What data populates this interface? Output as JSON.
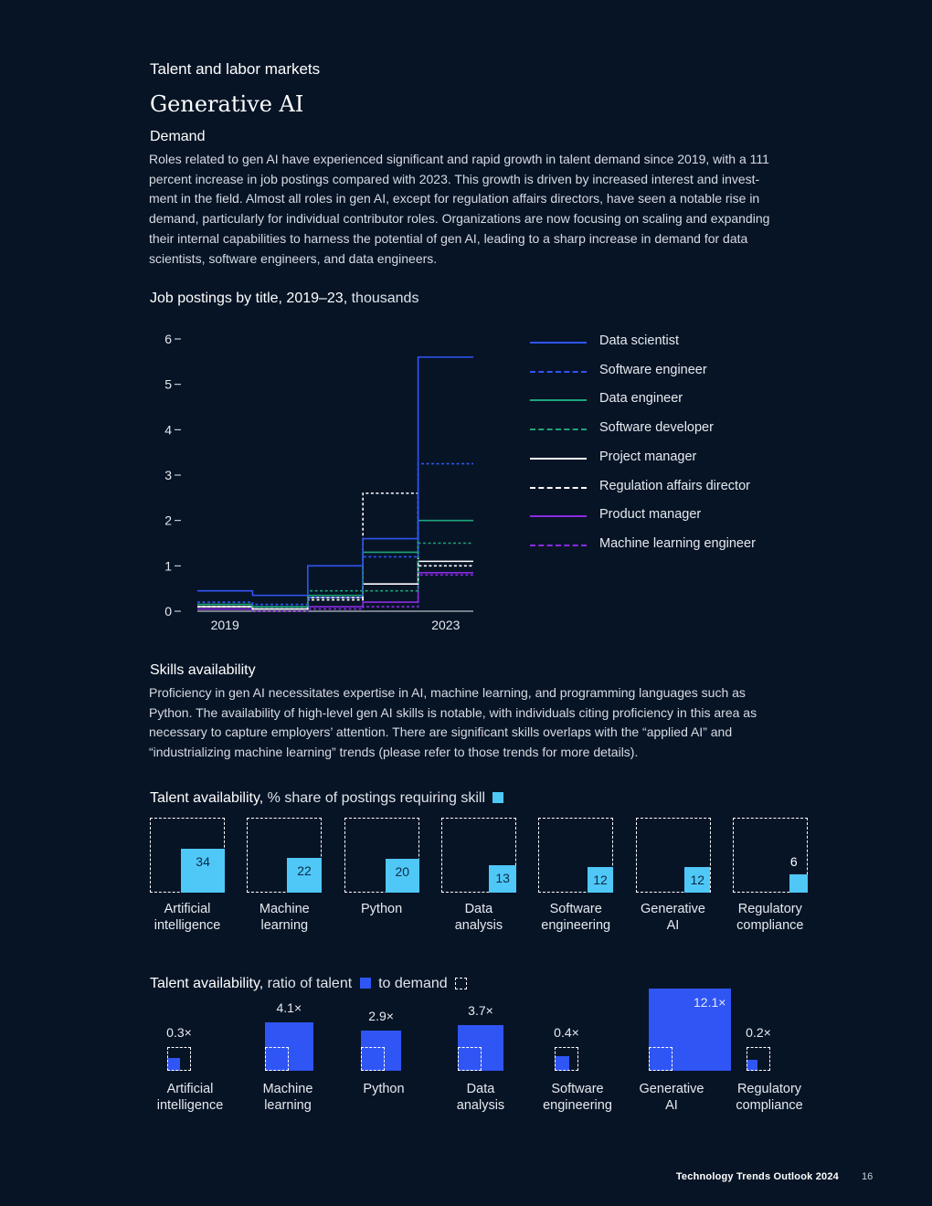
{
  "section": "Talent and labor markets",
  "title": "Generative AI",
  "demand": {
    "heading": "Demand",
    "lines": [
      "Roles related to gen AI have experienced significant and rapid growth in talent demand since 2019, with a 111",
      "percent increase in job postings compared with 2023. This growth is driven by increased interest and invest-",
      "ment in the field. Almost all roles in gen AI, except for regulation affairs directors, have seen a notable rise in",
      "demand, particularly for individual contributor roles. Organizations are now focusing on scaling and expanding",
      "their internal capabilities to harness the potential of gen AI, leading to a sharp increase in demand for data",
      "scientists, software engineers, and data engineers."
    ]
  },
  "skills": {
    "heading": "Skills availability",
    "lines": [
      "Proficiency in gen AI necessitates expertise in AI, machine learning, and programming languages such as",
      "Python. The availability of high-level gen AI skills is notable, with individuals citing proficiency in this area as",
      "necessary to capture employers’ attention. There are significant skills overlaps with the “applied AI” and",
      "“industrializing machine learning” trends (please refer to those trends for more details)."
    ]
  },
  "colors": {
    "background": "#071426",
    "blue": "#2f55f5",
    "cyan": "#4fc8f8",
    "green": "#1ea57a",
    "purple": "#8a2be2",
    "white": "#ffffff"
  },
  "chart_data": [
    {
      "type": "line",
      "title_bold": "Job postings by title, 2019–23,",
      "title_unit": "thousands",
      "x": [
        2019,
        2020,
        2021,
        2022,
        2023
      ],
      "x_tick_labels": [
        "2019",
        "2023"
      ],
      "y_ticks": [
        "0",
        "1",
        "2",
        "3",
        "4",
        "5",
        "6"
      ],
      "ylim": [
        0,
        6
      ],
      "step": true,
      "series": [
        {
          "name": "Data scientist",
          "values": [
            0.45,
            0.35,
            1.0,
            1.6,
            5.6
          ],
          "color": "#2f55f5",
          "dashed": false
        },
        {
          "name": "Software engineer",
          "values": [
            0.2,
            0.15,
            0.3,
            1.2,
            3.25
          ],
          "color": "#2f55f5",
          "dashed": true
        },
        {
          "name": "Data engineer",
          "values": [
            0.15,
            0.1,
            0.35,
            1.3,
            2.0
          ],
          "color": "#1ea57a",
          "dashed": false
        },
        {
          "name": "Software developer",
          "values": [
            0.15,
            0.1,
            0.45,
            0.45,
            1.5
          ],
          "color": "#1ea57a",
          "dashed": true
        },
        {
          "name": "Project manager",
          "values": [
            0.1,
            0.05,
            0.3,
            0.6,
            1.1
          ],
          "color": "#ffffff",
          "dashed": false
        },
        {
          "name": "Regulation affairs director",
          "values": [
            0.1,
            0.05,
            0.25,
            2.6,
            1.0
          ],
          "color": "#ffffff",
          "dashed": true
        },
        {
          "name": "Product manager",
          "values": [
            0.05,
            0.05,
            0.1,
            0.2,
            0.85
          ],
          "color": "#8a2be2",
          "dashed": false
        },
        {
          "name": "Machine learning engineer",
          "values": [
            0.05,
            0.0,
            0.05,
            0.1,
            0.8
          ],
          "color": "#8a2be2",
          "dashed": true
        }
      ]
    },
    {
      "type": "bar",
      "title_bold": "Talent availability,",
      "title_unit": "% share of postings requiring skill",
      "categories": [
        "Artificial intelligence",
        "Machine learning",
        "Python",
        "Data analysis",
        "Software engineering",
        "Generative AI",
        "Regulatory compliance"
      ],
      "category_lines": [
        [
          "Artificial",
          "intelligence"
        ],
        [
          "Machine",
          "learning"
        ],
        [
          "Python",
          ""
        ],
        [
          "Data",
          "analysis"
        ],
        [
          "Software",
          "engineering"
        ],
        [
          "Generative",
          "AI"
        ],
        [
          "Regulatory",
          "compliance"
        ]
      ],
      "values": [
        34,
        22,
        20,
        13,
        12,
        12,
        6
      ],
      "value_labels": [
        "34",
        "22",
        "20",
        "13",
        "12",
        "12",
        "6"
      ],
      "max": 100
    },
    {
      "type": "bar",
      "title_bold": "Talent availability,",
      "title_mid": "ratio of talent",
      "title_end": "to demand",
      "categories": [
        "Artificial intelligence",
        "Machine learning",
        "Python",
        "Data analysis",
        "Software engineering",
        "Generative AI",
        "Regulatory compliance"
      ],
      "category_lines": [
        [
          "Artificial",
          "intelligence"
        ],
        [
          "Machine",
          "learning"
        ],
        [
          "Python",
          ""
        ],
        [
          "Data",
          "analysis"
        ],
        [
          "Software",
          "engineering"
        ],
        [
          "Generative",
          "AI"
        ],
        [
          "Regulatory",
          "compliance"
        ]
      ],
      "values": [
        0.3,
        4.1,
        2.9,
        3.7,
        0.4,
        12.1,
        0.2
      ],
      "value_labels": [
        "0.3×",
        "4.1×",
        "2.9×",
        "3.7×",
        "0.4×",
        "12.1×",
        "0.2×"
      ]
    }
  ],
  "footer": {
    "publication": "Technology Trends Outlook 2024",
    "page": "16"
  }
}
